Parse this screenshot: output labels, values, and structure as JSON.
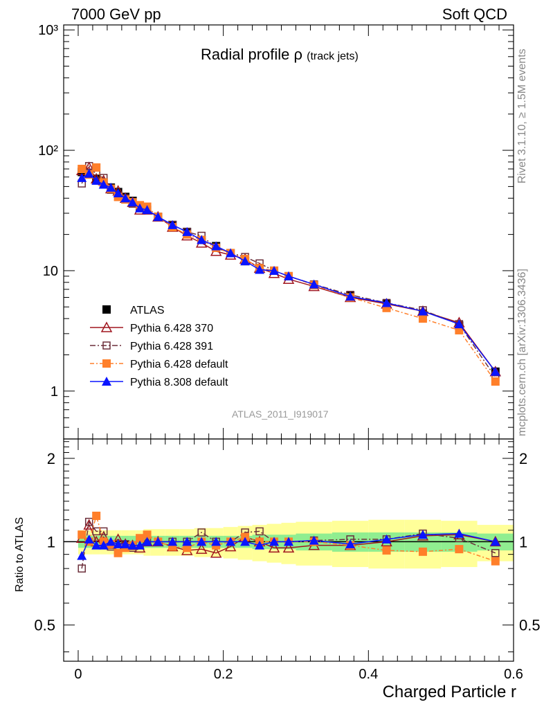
{
  "header": {
    "left": "7000 GeV pp",
    "right": "Soft QCD"
  },
  "side_labels": {
    "rivet": "Rivet 3.1.10, ≥ 1.5M events",
    "mcplots": "mcplots.cern.ch [arXiv:1306.3436]"
  },
  "watermark": "ATLAS_2011_I919017",
  "chart_data": [
    {
      "type": "line",
      "title": "Radial profile ρ",
      "title_suffix": "(track jets)",
      "yscale": "log",
      "xlim": [
        -0.02,
        0.6
      ],
      "ylim": [
        0.4,
        1100
      ],
      "y_tick_labels": [
        "1",
        "10",
        "10²",
        "10³"
      ],
      "legend_position": "lower-left",
      "x": [
        0.005,
        0.015,
        0.025,
        0.035,
        0.045,
        0.055,
        0.065,
        0.075,
        0.085,
        0.095,
        0.11,
        0.13,
        0.15,
        0.17,
        0.19,
        0.21,
        0.23,
        0.25,
        0.27,
        0.29,
        0.325,
        0.375,
        0.425,
        0.475,
        0.525,
        0.575
      ],
      "series": [
        {
          "name": "ATLAS",
          "color": "#000000",
          "marker": "square",
          "values": [
            66,
            63,
            58,
            54,
            49,
            45,
            41,
            38,
            34,
            32,
            28,
            24,
            21,
            18,
            16,
            14,
            12,
            10.5,
            10,
            9,
            7.6,
            6.2,
            5.3,
            4.4,
            3.5,
            1.45
          ]
        },
        {
          "name": "Pythia 6.428 370",
          "color": "#a0161f",
          "marker": "open-triangle",
          "dash": "",
          "values": [
            68,
            72,
            58,
            56,
            48,
            46,
            40,
            37,
            32,
            32,
            28,
            23,
            19.5,
            17,
            14.5,
            13.5,
            12.5,
            10.5,
            9.5,
            8.5,
            7.4,
            6.0,
            5.3,
            4.6,
            3.7,
            1.45
          ]
        },
        {
          "name": "Pythia 6.428 391",
          "color": "#6b2e3a",
          "marker": "open-square",
          "dash": "8,3,2,3",
          "values": [
            53,
            74,
            63,
            59,
            47,
            41,
            40,
            36,
            33,
            32,
            28,
            24,
            21,
            19.5,
            15.5,
            14,
            13,
            11.5,
            10,
            9,
            7.7,
            6.3,
            5.4,
            4.7,
            3.6,
            1.3
          ]
        },
        {
          "name": "Pythia 6.428 default",
          "color": "#ff7f2a",
          "marker": "square",
          "dash": "6,3,2,3",
          "values": [
            70,
            63,
            72,
            54,
            48,
            41,
            39,
            37,
            35,
            34,
            28,
            23,
            20,
            18,
            15.5,
            14,
            12.5,
            10.5,
            10,
            9,
            7.6,
            6.0,
            4.9,
            4.0,
            3.2,
            1.2
          ]
        },
        {
          "name": "Pythia 8.308 default",
          "color": "#0a14ff",
          "marker": "triangle",
          "dash": "",
          "values": [
            59,
            64,
            56,
            52,
            49,
            44,
            40,
            37,
            33,
            32,
            28,
            24,
            21,
            18,
            16,
            14,
            12,
            10.2,
            10,
            9,
            7.7,
            6.1,
            5.4,
            4.6,
            3.6,
            1.45
          ]
        }
      ]
    },
    {
      "type": "line",
      "ylabel": "Ratio to ATLAS",
      "xlabel": "Charged Particle r",
      "xlim": [
        -0.02,
        0.6
      ],
      "ylim": [
        0.37,
        2.35
      ],
      "yscale": "log",
      "y_tick_labels": [
        "0.5",
        "1",
        "2"
      ],
      "x_tick_labels": [
        "0",
        "0.2",
        "0.4",
        "0.6"
      ],
      "x_ticks": [
        0,
        0.2,
        0.4,
        0.6
      ],
      "band_outer": {
        "color": "#ffff99"
      },
      "band_inner": {
        "color": "#90ee90"
      },
      "uncertainty_bins": [
        {
          "lo": 0.0,
          "hi": 0.01,
          "in": 0.05,
          "out": 0.1
        },
        {
          "lo": 0.01,
          "hi": 0.02,
          "in": 0.05,
          "out": 0.1
        },
        {
          "lo": 0.02,
          "hi": 0.03,
          "in": 0.05,
          "out": 0.1
        },
        {
          "lo": 0.03,
          "hi": 0.04,
          "in": 0.05,
          "out": 0.1
        },
        {
          "lo": 0.04,
          "hi": 0.05,
          "in": 0.05,
          "out": 0.1
        },
        {
          "lo": 0.05,
          "hi": 0.06,
          "in": 0.05,
          "out": 0.1
        },
        {
          "lo": 0.06,
          "hi": 0.07,
          "in": 0.05,
          "out": 0.1
        },
        {
          "lo": 0.07,
          "hi": 0.08,
          "in": 0.05,
          "out": 0.1
        },
        {
          "lo": 0.08,
          "hi": 0.09,
          "in": 0.05,
          "out": 0.1
        },
        {
          "lo": 0.09,
          "hi": 0.1,
          "in": 0.05,
          "out": 0.11
        },
        {
          "lo": 0.1,
          "hi": 0.12,
          "in": 0.05,
          "out": 0.11
        },
        {
          "lo": 0.12,
          "hi": 0.14,
          "in": 0.05,
          "out": 0.11
        },
        {
          "lo": 0.14,
          "hi": 0.16,
          "in": 0.05,
          "out": 0.11
        },
        {
          "lo": 0.16,
          "hi": 0.18,
          "in": 0.05,
          "out": 0.12
        },
        {
          "lo": 0.18,
          "hi": 0.2,
          "in": 0.05,
          "out": 0.12
        },
        {
          "lo": 0.2,
          "hi": 0.22,
          "in": 0.05,
          "out": 0.13
        },
        {
          "lo": 0.22,
          "hi": 0.24,
          "in": 0.05,
          "out": 0.14
        },
        {
          "lo": 0.24,
          "hi": 0.26,
          "in": 0.06,
          "out": 0.15
        },
        {
          "lo": 0.26,
          "hi": 0.28,
          "in": 0.06,
          "out": 0.16
        },
        {
          "lo": 0.28,
          "hi": 0.3,
          "in": 0.06,
          "out": 0.17
        },
        {
          "lo": 0.3,
          "hi": 0.35,
          "in": 0.07,
          "out": 0.18
        },
        {
          "lo": 0.35,
          "hi": 0.4,
          "in": 0.08,
          "out": 0.19
        },
        {
          "lo": 0.4,
          "hi": 0.45,
          "in": 0.08,
          "out": 0.2
        },
        {
          "lo": 0.45,
          "hi": 0.5,
          "in": 0.08,
          "out": 0.2
        },
        {
          "lo": 0.5,
          "hi": 0.55,
          "in": 0.08,
          "out": 0.19
        },
        {
          "lo": 0.55,
          "hi": 0.6,
          "in": 0.07,
          "out": 0.15
        }
      ],
      "x": [
        0.005,
        0.015,
        0.025,
        0.035,
        0.045,
        0.055,
        0.065,
        0.075,
        0.085,
        0.095,
        0.11,
        0.13,
        0.15,
        0.17,
        0.19,
        0.21,
        0.23,
        0.25,
        0.27,
        0.29,
        0.325,
        0.375,
        0.425,
        0.475,
        0.525,
        0.575
      ],
      "series": [
        {
          "name": "Pythia 6.428 370",
          "color": "#a0161f",
          "marker": "open-triangle",
          "dash": "",
          "values": [
            1.03,
            1.15,
            1.0,
            1.04,
            0.98,
            1.02,
            0.98,
            0.97,
            0.95,
            1.0,
            1.0,
            0.96,
            0.93,
            0.94,
            0.91,
            0.96,
            1.04,
            1.0,
            0.95,
            0.95,
            0.97,
            0.97,
            1.0,
            1.05,
            1.06,
            1.0
          ]
        },
        {
          "name": "Pythia 6.428 391",
          "color": "#6b2e3a",
          "marker": "open-square",
          "dash": "8,3,2,3",
          "values": [
            0.8,
            1.18,
            1.09,
            1.09,
            0.96,
            0.91,
            0.98,
            0.95,
            0.97,
            1.0,
            1.0,
            1.0,
            1.0,
            1.08,
            1.0,
            1.0,
            1.08,
            1.09,
            1.0,
            1.0,
            1.01,
            1.02,
            1.02,
            1.07,
            1.03,
            0.91
          ]
        },
        {
          "name": "Pythia 6.428 default",
          "color": "#ff7f2a",
          "marker": "square",
          "dash": "6,3,2,3",
          "values": [
            1.06,
            1.0,
            1.24,
            1.0,
            0.98,
            0.91,
            0.95,
            0.97,
            1.03,
            1.06,
            1.0,
            0.96,
            0.95,
            1.0,
            0.97,
            1.0,
            1.04,
            1.0,
            1.0,
            1.0,
            1.0,
            0.97,
            0.93,
            0.92,
            0.94,
            0.85
          ]
        },
        {
          "name": "Pythia 8.308 default",
          "color": "#0a14ff",
          "marker": "triangle",
          "dash": "",
          "values": [
            0.89,
            1.02,
            0.97,
            0.97,
            1.0,
            0.98,
            0.98,
            0.97,
            0.97,
            1.0,
            1.0,
            1.0,
            1.0,
            1.0,
            1.0,
            1.0,
            1.0,
            0.97,
            1.0,
            1.0,
            1.01,
            0.98,
            1.02,
            1.06,
            1.07,
            1.0
          ]
        }
      ]
    }
  ]
}
